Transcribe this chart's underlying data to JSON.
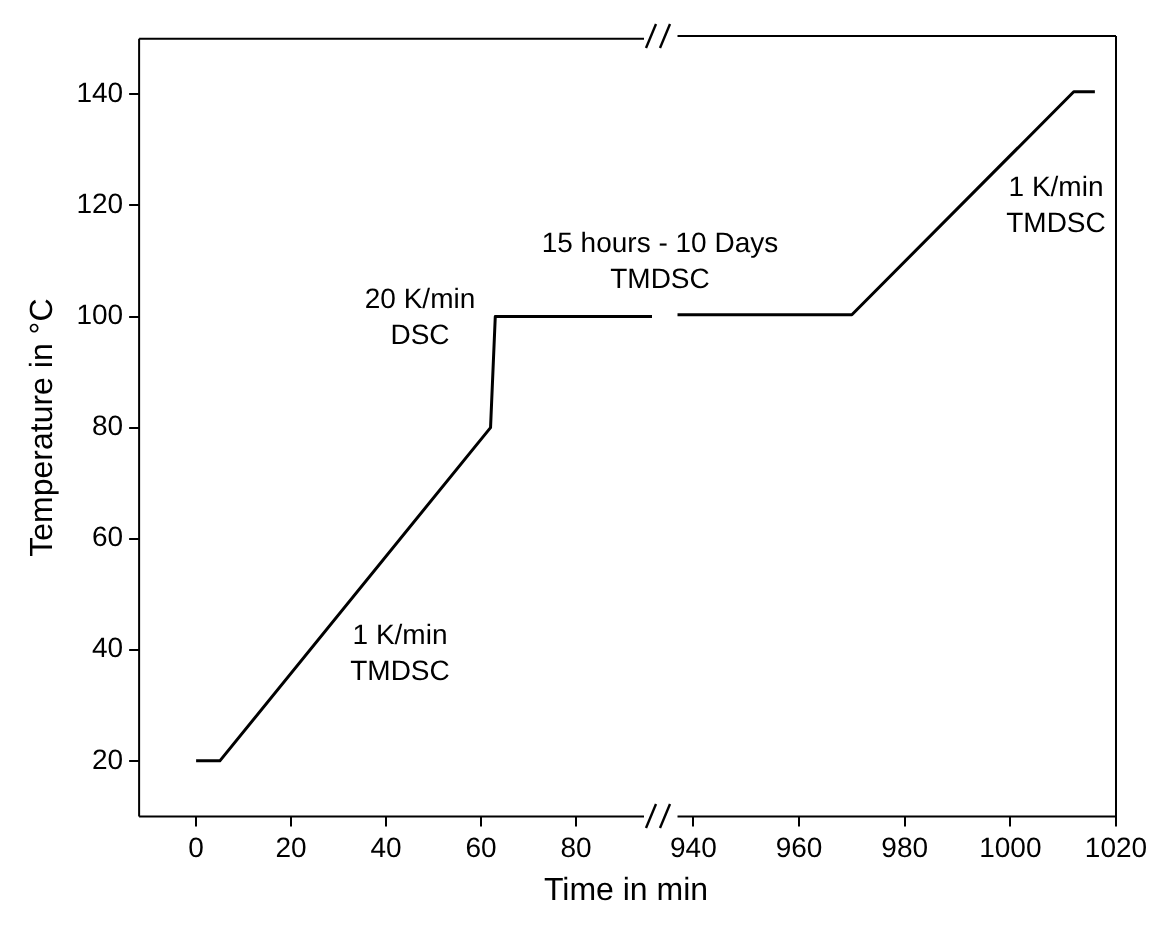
{
  "chart_data": [
    {
      "type": "line",
      "xlabel": "Time in min",
      "ylabel": "Temperature in °C",
      "x": [
        0,
        5,
        62,
        63,
        96
      ],
      "series": [
        {
          "color": "#000000",
          "values": [
            20,
            20,
            80,
            100,
            100
          ]
        }
      ],
      "xlim": [
        -12,
        96
      ],
      "xticks": [
        0,
        20,
        40,
        60,
        80
      ],
      "ylim": [
        10,
        150
      ],
      "yticks": [
        20,
        40,
        60,
        80,
        100,
        120,
        140
      ],
      "grid": false,
      "legend": false,
      "marker": "none",
      "annotations": [
        "1 K/min\nTMDSC",
        "20 K/min\nDSC",
        "15 hours - 10 Days\nTMDSC"
      ]
    },
    {
      "type": "line",
      "x": [
        937,
        970,
        1012,
        1016
      ],
      "series": [
        {
          "color": "#000000",
          "values": [
            100,
            100,
            140,
            140
          ]
        }
      ],
      "xlim": [
        937,
        1020
      ],
      "xticks": [
        940,
        960,
        980,
        1000,
        1020
      ],
      "ylim": [
        10,
        150
      ],
      "yticks": [
        20,
        40,
        60,
        80,
        100,
        120,
        140
      ],
      "tick_labels": "x",
      "grid": false,
      "legend": false,
      "marker": "none",
      "annotations": [
        "1 K/min\nTMDSC"
      ]
    }
  ]
}
